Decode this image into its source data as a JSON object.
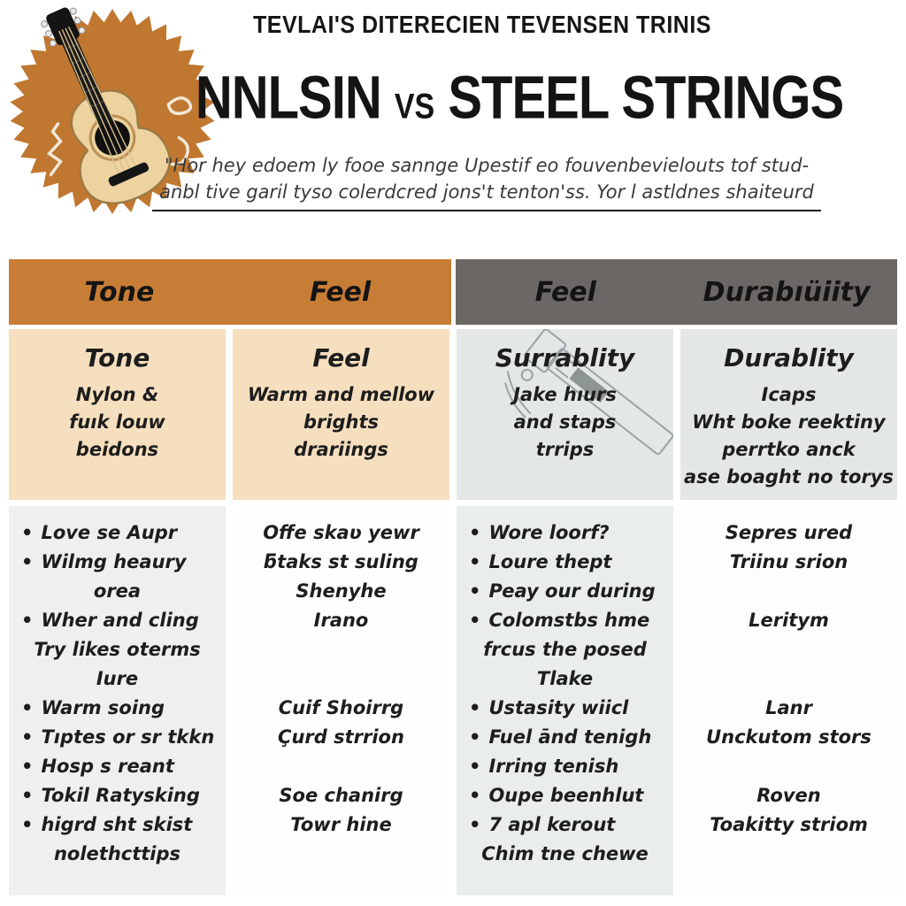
{
  "colors": {
    "accent_orange": "#c87d36",
    "header_gray": "#6a6765",
    "peach": "#f6dfbf",
    "cell_gray": "#e3e8e7",
    "list_gray": "#edf0ef",
    "list_gray2": "#e9edec",
    "badge_orange": "#c0772f",
    "guitar_tan": "#ecd3a0"
  },
  "icons": {
    "badge": "guitar-gear-badge-icon",
    "sketch": "guitar-neck-sketch-icon"
  },
  "bullet_char": "•",
  "header": {
    "kicker": "TEVLAI'S DITERECIEN TEVENSEN TRINIS",
    "title_left": "NNLSIN",
    "title_vs": "VS",
    "title_right": "STEEL STRINGS",
    "subtitle_line1": "\"Hor hey edoem ly fooe sannge Upestif eo fouvenbevielouts tof stud-",
    "subtitle_line2": "anbl tive garil tyso colerdcred jons't tenton'ss. Yor l astldnes shaiteurd"
  },
  "table": {
    "header_labels": [
      "Tone",
      "Feel",
      "Feel",
      "Durabıüiity"
    ],
    "subheader": [
      {
        "title": "Tone",
        "lines": [
          "Nylon &",
          "fuık louw",
          "beidons"
        ]
      },
      {
        "title": "Feel",
        "lines": [
          "Warm and mellow",
          "brights",
          "drariings"
        ]
      },
      {
        "title": "Surrablity",
        "lines": [
          "Jake hıurs",
          "and staps",
          "trrips"
        ]
      },
      {
        "title": "Durablity",
        "lines": [
          "Icaps",
          "Wht boke reektiny",
          "perrtko anck",
          "ase boaght no torys"
        ]
      }
    ],
    "columns": [
      {
        "items": [
          {
            "bullet": true,
            "lines": [
              "Love se Aupr"
            ]
          },
          {
            "bullet": true,
            "lines": [
              "Wilmg heaury",
              "orea"
            ]
          },
          {
            "bullet": true,
            "lines": [
              "Wher and cling",
              "Try likes oterms",
              "Iure"
            ]
          },
          {
            "bullet": true,
            "lines": [
              "Warm soing"
            ]
          },
          {
            "bullet": true,
            "lines": [
              "Tıptes or sr tkkn"
            ]
          },
          {
            "bullet": true,
            "lines": [
              "Hosp s reant"
            ]
          },
          {
            "bullet": true,
            "lines": [
              "Tokil Ratysking"
            ]
          },
          {
            "bullet": true,
            "lines": [
              "higrd sht skist",
              "nolethcttips"
            ]
          }
        ]
      },
      {
        "items": [
          "Offe skaʋ yewr",
          "ƃtaks st suling",
          "Shenyhe",
          "Irano",
          {
            "gap": 2
          },
          "Cuif Shoirrg",
          "Çurd strrion",
          {
            "gap": 1
          },
          "Soe chanirg",
          "Towr hine"
        ]
      },
      {
        "items": [
          {
            "bullet": true,
            "lines": [
              "Wore loorf?"
            ]
          },
          {
            "bullet": true,
            "lines": [
              "Loure thept"
            ]
          },
          {
            "bullet": true,
            "lines": [
              "Peay our during"
            ]
          },
          {
            "bullet": true,
            "lines": [
              "Colomstbs hme",
              "frcus the posed",
              "Tlake"
            ]
          },
          {
            "bullet": true,
            "lines": [
              "Ustasity wiicl"
            ]
          },
          {
            "bullet": true,
            "lines": [
              "Fuel ānd tenigh"
            ]
          },
          {
            "bullet": true,
            "lines": [
              "Irring tenish"
            ]
          },
          {
            "bullet": true,
            "lines": [
              "Oupe beenhlut"
            ]
          },
          {
            "bullet": true,
            "lines": [
              "7 apl kerout",
              "Chim tne chewe"
            ]
          }
        ]
      },
      {
        "items": [
          "Sepres ured",
          "Triinu srion",
          {
            "gap": 1
          },
          "Leritym",
          {
            "gap": 2
          },
          "Lanr",
          "Unckutom stors",
          {
            "gap": 1
          },
          "Roven",
          "Toakitty striom"
        ]
      }
    ]
  }
}
